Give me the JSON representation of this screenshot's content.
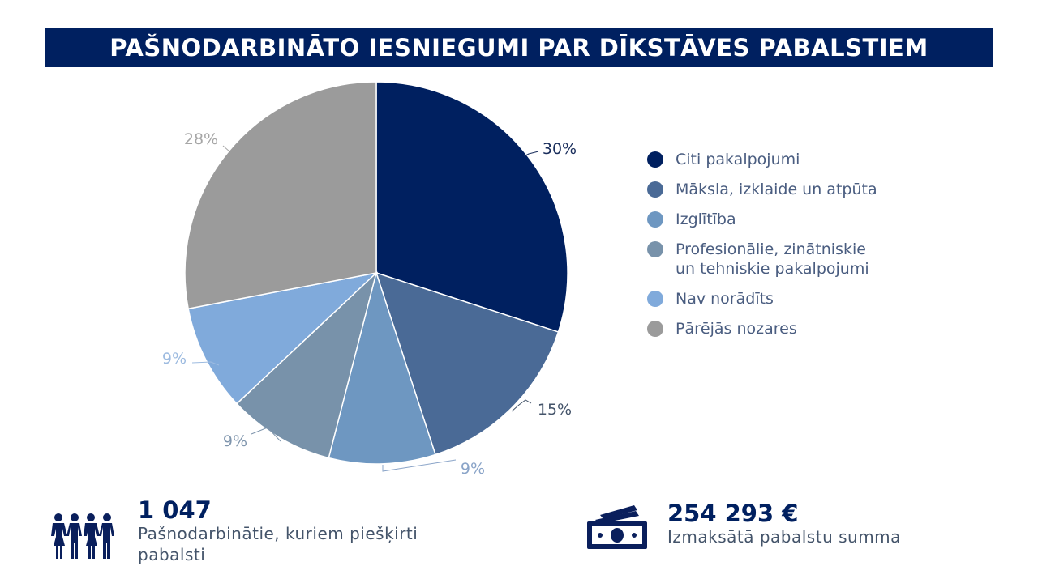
{
  "header": {
    "title": "PAŠNODARBINĀTO IESNIEGUMI PAR DĪKSTĀVES PABALSTIEM"
  },
  "chart_data": {
    "type": "pie",
    "categories": [
      "Citi pakalpojumi",
      "Māksla, izklaide un atpūta",
      "Izglītība",
      "Profesionālie, zinātniskie un tehniskie pakalpojumi",
      "Nav norādīts",
      "Pārējās nozares"
    ],
    "values": [
      30,
      15,
      9,
      9,
      9,
      28
    ],
    "data_labels": [
      "30%",
      "15%",
      "9%",
      "9%",
      "9%",
      "28%"
    ],
    "colors": [
      "#002060",
      "#4a6a96",
      "#6e97c1",
      "#7892aa",
      "#80aadb",
      "#9b9b9b"
    ],
    "legend_position": "right"
  },
  "stats": {
    "recipients": {
      "value": "1 047",
      "label": "Pašnodarbinātie, kuriem piešķirti pabalsti"
    },
    "amount": {
      "value": "254 293 €",
      "label": "Izmaksātā pabalstu summa"
    }
  },
  "icons": {
    "people": "people-group-icon",
    "money": "banknotes-icon"
  }
}
